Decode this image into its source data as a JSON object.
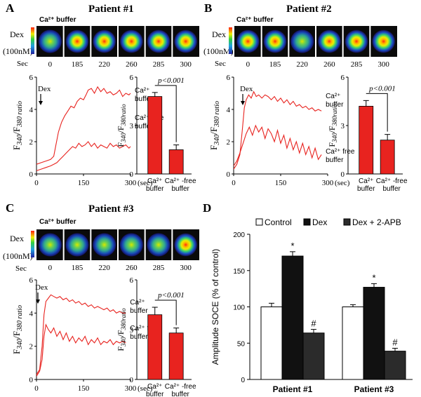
{
  "colors": {
    "trace": "#e8231f",
    "bar_red": "#e8231f",
    "bar_control": "#ffffff",
    "bar_dex": "#111111",
    "bar_apb": "#2b2b2b",
    "image_bg": "#0a0a0a"
  },
  "panels": [
    {
      "letter": "A",
      "title": "Patient #1",
      "image_strip": {
        "buffer_label": "Ca²⁺ buffer",
        "dex_label": "Dex",
        "conc_label": "(100nM)",
        "sec_label": "Sec",
        "frames": [
          "0",
          "185",
          "220",
          "260",
          "285",
          "300"
        ]
      },
      "trace": {
        "ylabel": "F340/F380 ratio",
        "yticks": [
          "0",
          "2",
          "4",
          "6"
        ],
        "xticks": [
          "0",
          "150",
          "300"
        ],
        "xunit": "(sec)",
        "marker": "Dex",
        "series": [
          {
            "name": "Ca²⁺ buffer",
            "label_lines": [
              "Ca²⁺",
              "buffer"
            ],
            "x": [
              0,
              15,
              30,
              45,
              55,
              62,
              70,
              80,
              90,
              100,
              110,
              120,
              130,
              140,
              150,
              158,
              165,
              175,
              185,
              195,
              205,
              215,
              225,
              235,
              245,
              255,
              265,
              275,
              285,
              295,
              300
            ],
            "y": [
              0.6,
              0.7,
              0.8,
              0.9,
              1.1,
              1.8,
              2.6,
              3.2,
              3.6,
              3.9,
              4.2,
              4.1,
              4.5,
              4.7,
              4.6,
              4.9,
              5.2,
              5.3,
              5.0,
              5.4,
              5.1,
              5.3,
              5.0,
              5.1,
              4.9,
              5.0,
              5.2,
              4.8,
              5.0,
              4.9,
              5.0
            ]
          },
          {
            "name": "Ca²⁺ free buffer",
            "label_lines": [
              "Ca²⁺ free",
              "buffer"
            ],
            "x": [
              0,
              15,
              30,
              45,
              55,
              65,
              75,
              85,
              95,
              105,
              115,
              125,
              135,
              145,
              155,
              165,
              175,
              185,
              195,
              205,
              215,
              225,
              235,
              245,
              255,
              265,
              275,
              285,
              295,
              300
            ],
            "y": [
              0.2,
              0.3,
              0.4,
              0.5,
              0.6,
              0.7,
              0.9,
              1.1,
              1.3,
              1.5,
              1.7,
              1.6,
              1.9,
              1.7,
              1.8,
              2.0,
              1.7,
              1.9,
              1.6,
              1.8,
              1.7,
              1.6,
              1.9,
              1.7,
              1.8,
              1.6,
              1.7,
              1.8,
              1.6,
              1.7
            ]
          }
        ]
      },
      "bars": {
        "ylabel": "F340/F380ratio",
        "yticks": [
          "0",
          "3",
          "6"
        ],
        "categories": [
          [
            "Ca²⁺",
            "buffer"
          ],
          [
            "Ca²⁺ -free",
            "buffer"
          ]
        ],
        "values": [
          4.8,
          1.5
        ],
        "errors": [
          0.25,
          0.3
        ],
        "ylim": [
          0,
          6
        ],
        "pvalue": "p<0.001"
      }
    },
    {
      "letter": "B",
      "title": "Patient #2",
      "image_strip": {
        "buffer_label": "Ca²⁺ buffer",
        "dex_label": "Dex",
        "conc_label": "(100nM)",
        "sec_label": "Sec",
        "frames": [
          "0",
          "185",
          "220",
          "260",
          "285",
          "300"
        ]
      },
      "trace": {
        "ylabel": "F340/F380 ratio",
        "yticks": [
          "0",
          "2",
          "4",
          "6"
        ],
        "xticks": [
          "0",
          "150",
          "300"
        ],
        "xunit": "(sec)",
        "marker": "Dex",
        "series": [
          {
            "name": "Ca²⁺ buffer",
            "label_lines": [
              "Ca²⁺",
              "buffer"
            ],
            "x": [
              0,
              10,
              20,
              28,
              34,
              40,
              48,
              56,
              64,
              72,
              80,
              90,
              100,
              110,
              120,
              130,
              140,
              150,
              160,
              170,
              180,
              190,
              200,
              210,
              220,
              230,
              240,
              250,
              260,
              270,
              280
            ],
            "y": [
              0.3,
              0.6,
              1.2,
              2.8,
              4.1,
              4.6,
              4.9,
              4.7,
              5.1,
              4.8,
              4.9,
              4.7,
              4.9,
              4.8,
              4.6,
              4.8,
              4.5,
              4.7,
              4.4,
              4.6,
              4.3,
              4.5,
              4.2,
              4.3,
              4.1,
              4.2,
              4.0,
              4.1,
              3.9,
              4.0,
              3.9
            ]
          },
          {
            "name": "Ca²⁺ free buffer",
            "label_lines": [
              "Ca²⁺ free",
              "buffer"
            ],
            "x": [
              0,
              10,
              20,
              30,
              40,
              50,
              60,
              70,
              80,
              90,
              100,
              110,
              120,
              130,
              140,
              150,
              160,
              170,
              180,
              190,
              200,
              210,
              220,
              230,
              240,
              250,
              260,
              270,
              280
            ],
            "y": [
              0.5,
              0.8,
              1.3,
              1.9,
              2.5,
              2.9,
              2.4,
              3.0,
              2.6,
              2.9,
              2.2,
              2.8,
              2.5,
              2.0,
              2.7,
              1.9,
              2.4,
              1.6,
              2.2,
              1.5,
              2.0,
              1.3,
              1.9,
              1.2,
              1.7,
              1.0,
              1.6,
              0.9,
              1.2
            ]
          }
        ]
      },
      "bars": {
        "ylabel": "F340/F380ratio",
        "yticks": [
          "0",
          "3",
          "6"
        ],
        "categories": [
          [
            "Ca²⁺",
            "buffer"
          ],
          [
            "Ca²⁺ -free",
            "buffer"
          ]
        ],
        "values": [
          4.2,
          2.1
        ],
        "errors": [
          0.35,
          0.35
        ],
        "ylim": [
          0,
          6
        ],
        "pvalue": "p<0.001"
      }
    },
    {
      "letter": "C",
      "title": "Patient #3",
      "image_strip": {
        "buffer_label": "Ca²⁺ buffer",
        "dex_label": "Dex",
        "conc_label": "(100nM)",
        "sec_label": "Sec",
        "frames": [
          "0",
          "185",
          "220",
          "260",
          "285",
          "300"
        ]
      },
      "trace": {
        "ylabel": "F340/F380 ratio",
        "yticks": [
          "0",
          "2",
          "4",
          "6"
        ],
        "xticks": [
          "0",
          "150",
          "300"
        ],
        "xunit": "(sec)",
        "marker": "Dex",
        "series": [
          {
            "name": "Ca²⁺ buffer",
            "label_lines": [
              "Ca²⁺",
              "buffer"
            ],
            "x": [
              0,
              10,
              18,
              24,
              30,
              38,
              46,
              55,
              65,
              75,
              85,
              95,
              105,
              115,
              125,
              135,
              145,
              155,
              165,
              175,
              185,
              195,
              205,
              215,
              225,
              235,
              245,
              255,
              265,
              275,
              285
            ],
            "y": [
              0.3,
              0.6,
              2.0,
              3.9,
              4.7,
              4.9,
              5.1,
              5.0,
              4.9,
              5.0,
              4.8,
              4.9,
              4.7,
              4.8,
              4.6,
              4.7,
              4.5,
              4.6,
              4.4,
              4.5,
              4.3,
              4.4,
              4.3,
              4.2,
              4.3,
              4.1,
              4.2,
              4.0,
              4.1,
              4.0,
              4.0
            ]
          },
          {
            "name": "Ca²⁺ free buffer",
            "label_lines": [
              "Ca²⁺ free",
              "buffer"
            ],
            "x": [
              0,
              10,
              18,
              24,
              30,
              38,
              46,
              55,
              65,
              75,
              85,
              95,
              105,
              115,
              125,
              135,
              145,
              155,
              165,
              175,
              185,
              195,
              205,
              215,
              225,
              235,
              245,
              255,
              265,
              275,
              285
            ],
            "y": [
              0.2,
              0.5,
              1.2,
              2.6,
              3.3,
              3.0,
              2.8,
              3.1,
              2.6,
              2.9,
              2.4,
              2.8,
              2.3,
              2.6,
              2.2,
              2.5,
              2.3,
              2.6,
              2.1,
              2.4,
              2.2,
              2.5,
              2.1,
              2.3,
              2.2,
              2.4,
              2.1,
              2.3,
              2.2,
              2.3,
              2.2
            ]
          }
        ]
      },
      "bars": {
        "ylabel": "F340/F380ratio",
        "yticks": [
          "0",
          "3",
          "6"
        ],
        "categories": [
          [
            "Ca²⁺",
            "buffer"
          ],
          [
            "Ca²⁺ -free",
            "buffer"
          ]
        ],
        "values": [
          3.9,
          2.8
        ],
        "errors": [
          0.45,
          0.3
        ],
        "ylim": [
          0,
          6
        ],
        "pvalue": "p<0.001"
      }
    }
  ],
  "chart_data": [
    {
      "type": "line",
      "panel": "A",
      "title": "Patient #1",
      "xlabel": "(sec)",
      "ylabel": "F340/F380 ratio",
      "ylim": [
        0,
        6
      ],
      "xlim": [
        0,
        300
      ],
      "series": [
        {
          "name": "Ca²⁺ buffer",
          "values": "see panels[0].trace.series[0]"
        },
        {
          "name": "Ca²⁺ free buffer",
          "values": "see panels[0].trace.series[1]"
        }
      ]
    },
    {
      "type": "bar",
      "panel": "A",
      "categories": [
        "Ca²⁺ buffer",
        "Ca²⁺ -free buffer"
      ],
      "values": [
        4.8,
        1.5
      ],
      "ylabel": "F340/F380ratio",
      "ylim": [
        0,
        6
      ]
    },
    {
      "type": "line",
      "panel": "B",
      "title": "Patient #2",
      "xlabel": "(sec)",
      "ylabel": "F340/F380 ratio",
      "ylim": [
        0,
        6
      ],
      "xlim": [
        0,
        300
      ]
    },
    {
      "type": "bar",
      "panel": "B",
      "categories": [
        "Ca²⁺ buffer",
        "Ca²⁺ -free buffer"
      ],
      "values": [
        4.2,
        2.1
      ],
      "ylabel": "F340/F380ratio",
      "ylim": [
        0,
        6
      ]
    },
    {
      "type": "line",
      "panel": "C",
      "title": "Patient #3",
      "xlabel": "(sec)",
      "ylabel": "F340/F380 ratio",
      "ylim": [
        0,
        6
      ],
      "xlim": [
        0,
        300
      ]
    },
    {
      "type": "bar",
      "panel": "C",
      "categories": [
        "Ca²⁺ buffer",
        "Ca²⁺ -free buffer"
      ],
      "values": [
        3.9,
        2.8
      ],
      "ylabel": "F340/F380ratio",
      "ylim": [
        0,
        6
      ]
    },
    {
      "type": "bar",
      "panel": "D",
      "ylabel": "Amplitude SOCE (% of control)",
      "ylim": [
        0,
        200
      ],
      "yticks": [
        "0",
        "50",
        "100",
        "150",
        "200"
      ],
      "categories": [
        "Patient #1",
        "Patient #3"
      ],
      "series": [
        {
          "name": "Control",
          "values": [
            100,
            100
          ],
          "errors": [
            5,
            3
          ],
          "marks": [
            "",
            ""
          ]
        },
        {
          "name": "Dex",
          "values": [
            170,
            127
          ],
          "errors": [
            6,
            5
          ],
          "marks": [
            "*",
            "*"
          ]
        },
        {
          "name": "Dex + 2-APB",
          "values": [
            64,
            39
          ],
          "errors": [
            5,
            4
          ],
          "marks": [
            "#",
            "#"
          ]
        }
      ]
    }
  ],
  "panelD": {
    "letter": "D",
    "legend": [
      "Control",
      "Dex",
      "Dex + 2-APB"
    ]
  }
}
